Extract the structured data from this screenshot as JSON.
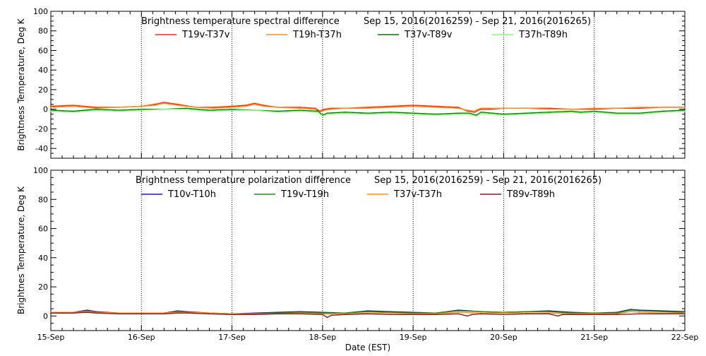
{
  "chart_data": [
    {
      "type": "line",
      "title": "Brightness temperature spectral difference",
      "date_range": "Sep 15, 2016(2016259) - Sep 21, 2016(2016265)",
      "ylabel": "Brightness Temperature, Deg K",
      "xlabel": "",
      "ylim": [
        -50,
        100
      ],
      "yticks": [
        "-40",
        "-20",
        "0",
        "20",
        "40",
        "60",
        "80",
        "100"
      ],
      "xlim": [
        0,
        7
      ],
      "xticks": [
        0,
        1,
        2,
        3,
        4,
        5,
        6,
        7
      ],
      "grid": "vertical-dotted",
      "legend_position": "top",
      "series": [
        {
          "name": "T19v-T37v",
          "color": "#ff2a00",
          "x": [
            0,
            0.25,
            0.5,
            0.75,
            1,
            1.15,
            1.25,
            1.4,
            1.6,
            1.8,
            2,
            2.15,
            2.25,
            2.35,
            2.5,
            2.75,
            2.92,
            2.97,
            3.02,
            3.1,
            3.25,
            3.5,
            3.75,
            4,
            4.25,
            4.5,
            4.6,
            4.68,
            4.72,
            4.75,
            4.85,
            5,
            5.25,
            5.5,
            5.75,
            6,
            6.25,
            6.5,
            6.75,
            7
          ],
          "y": [
            3,
            4,
            2,
            2,
            3,
            5,
            7,
            5,
            2,
            2,
            3,
            4,
            6,
            4,
            2,
            2,
            1,
            -2,
            0,
            1,
            1,
            2,
            3,
            4,
            3,
            2,
            -2,
            -3,
            -1,
            0,
            0,
            1,
            1,
            1,
            0,
            0,
            1,
            1,
            2,
            2
          ]
        },
        {
          "name": "T19h-T37h",
          "color": "#ff8c1a",
          "x": [
            0,
            0.25,
            0.5,
            0.75,
            1,
            1.15,
            1.25,
            1.4,
            1.6,
            1.8,
            2,
            2.15,
            2.25,
            2.35,
            2.5,
            2.75,
            2.92,
            2.97,
            3.02,
            3.1,
            3.25,
            3.5,
            3.75,
            4,
            4.25,
            4.5,
            4.6,
            4.68,
            4.72,
            4.75,
            4.85,
            5,
            5.25,
            5.5,
            5.75,
            6,
            6.25,
            6.5,
            6.75,
            7
          ],
          "y": [
            2,
            3,
            1,
            2,
            3,
            4,
            6,
            4,
            2,
            1,
            2,
            3,
            5,
            3,
            2,
            1,
            0,
            -3,
            -1,
            0,
            1,
            1,
            2,
            3,
            2,
            1,
            -1,
            -2,
            0,
            1,
            1,
            1,
            1,
            0,
            0,
            1,
            1,
            2,
            2,
            2
          ]
        },
        {
          "name": "T37v-T89v",
          "color": "#007a00",
          "x": [
            0,
            0.25,
            0.5,
            0.75,
            1,
            1.25,
            1.5,
            1.75,
            2,
            2.25,
            2.5,
            2.75,
            2.95,
            3,
            3.05,
            3.25,
            3.5,
            3.75,
            4,
            4.25,
            4.5,
            4.62,
            4.7,
            4.75,
            5,
            5.25,
            5.5,
            5.75,
            5.85,
            6,
            6.25,
            6.5,
            6.75,
            7
          ],
          "y": [
            -1,
            -2,
            0,
            -1,
            0,
            0,
            1,
            -1,
            0,
            -1,
            -2,
            -1,
            -2,
            -6,
            -4,
            -3,
            -4,
            -3,
            -4,
            -5,
            -4,
            -4,
            -6,
            -3,
            -5,
            -4,
            -3,
            -2,
            -3,
            -2,
            -4,
            -4,
            -2,
            -1
          ]
        },
        {
          "name": "T37h-T89h",
          "color": "#7dff66",
          "x": [
            0,
            0.25,
            0.5,
            0.75,
            1,
            1.25,
            1.5,
            1.75,
            2,
            2.25,
            2.5,
            2.75,
            2.95,
            3,
            3.05,
            3.25,
            3.5,
            3.75,
            4,
            4.25,
            4.5,
            4.62,
            4.7,
            4.75,
            5,
            5.25,
            5.5,
            5.75,
            5.85,
            6,
            6.25,
            6.5,
            6.75,
            7
          ],
          "y": [
            -2,
            -3,
            -1,
            -2,
            -1,
            0,
            0,
            -2,
            -1,
            -1,
            -3,
            -2,
            -3,
            -7,
            -5,
            -4,
            -5,
            -4,
            -5,
            -6,
            -5,
            -5,
            -7,
            -4,
            -6,
            -5,
            -4,
            -3,
            -4,
            -3,
            -5,
            -5,
            -3,
            -2
          ]
        }
      ]
    },
    {
      "type": "line",
      "title": "Brightness temperature polarization difference",
      "date_range": "Sep 15, 2016(2016259) - Sep 21, 2016(2016265)",
      "ylabel": "Brightnes Temperature, Deg K",
      "xlabel": "Date (EST)",
      "ylim": [
        -10,
        100
      ],
      "yticks": [
        "0",
        "20",
        "40",
        "60",
        "80",
        "100"
      ],
      "xlim": [
        0,
        7
      ],
      "xticks": [
        0,
        1,
        2,
        3,
        4,
        5,
        6,
        7
      ],
      "xticklabels": [
        "15-Sep",
        "16-Sep",
        "17-Sep",
        "18-Sep",
        "19-Sep",
        "20-Sep",
        "21-Sep",
        "22-Sep"
      ],
      "grid": "vertical-dotted",
      "legend_position": "top",
      "series": [
        {
          "name": "T10v-T10h",
          "color": "#1a1aa6",
          "x": [
            0,
            0.25,
            0.4,
            0.5,
            0.75,
            1,
            1.25,
            1.4,
            1.5,
            1.75,
            2,
            2.25,
            2.5,
            2.75,
            3,
            3.25,
            3.5,
            3.75,
            4,
            4.25,
            4.5,
            4.75,
            5,
            5.25,
            5.5,
            5.75,
            6,
            6.25,
            6.4,
            6.5,
            6.75,
            7
          ],
          "y": [
            2,
            2.5,
            4,
            3,
            2,
            2,
            2,
            3.5,
            3,
            2,
            1.5,
            2,
            2.5,
            3,
            2.5,
            2,
            3.5,
            3,
            2.5,
            2,
            4,
            3,
            2.5,
            3,
            3.5,
            2.5,
            2,
            2.5,
            4.5,
            4,
            3.5,
            3
          ]
        },
        {
          "name": "T19v-T19h",
          "color": "#1a9a1a",
          "x": [
            0,
            0.25,
            0.4,
            0.5,
            0.75,
            1,
            1.25,
            1.4,
            1.5,
            1.75,
            2,
            2.25,
            2.5,
            2.75,
            3,
            3.25,
            3.5,
            3.75,
            4,
            4.25,
            4.5,
            4.75,
            5,
            5.25,
            5.5,
            5.75,
            6,
            6.25,
            6.4,
            6.5,
            6.75,
            7
          ],
          "y": [
            2,
            2,
            3.5,
            2.5,
            2,
            2,
            2,
            3,
            2.5,
            2,
            1.5,
            1.5,
            2,
            2.5,
            2,
            2,
            3,
            2.5,
            2,
            2,
            3.5,
            3,
            2.5,
            3,
            3,
            2,
            2,
            2,
            4,
            3.5,
            3,
            2.5
          ]
        },
        {
          "name": "T37v-T37h",
          "color": "#ff8c1a",
          "x": [
            0,
            0.25,
            0.4,
            0.5,
            0.75,
            1,
            1.25,
            1.4,
            1.5,
            1.75,
            2,
            2.25,
            2.5,
            2.75,
            3,
            3.25,
            3.5,
            3.75,
            4,
            4.25,
            4.5,
            4.75,
            5,
            5.25,
            5.5,
            5.75,
            6,
            6.25,
            6.4,
            6.5,
            6.75,
            7
          ],
          "y": [
            2.5,
            2.5,
            3,
            2.5,
            2,
            2,
            2,
            2.5,
            2.5,
            2,
            1.5,
            1.5,
            1.5,
            2,
            1.5,
            1.5,
            2,
            2,
            1.5,
            1.5,
            2.5,
            2,
            2,
            2,
            2,
            1.5,
            1.5,
            1.5,
            3,
            2.5,
            2,
            2
          ]
        },
        {
          "name": "T89v-T89h",
          "color": "#8b1a1a",
          "x": [
            0,
            0.25,
            0.4,
            0.5,
            0.75,
            1,
            1.25,
            1.4,
            1.5,
            1.75,
            2,
            2.25,
            2.5,
            2.75,
            3,
            3.05,
            3.1,
            3.25,
            3.5,
            3.75,
            4,
            4.25,
            4.5,
            4.6,
            4.65,
            4.75,
            5,
            5.25,
            5.5,
            5.6,
            5.65,
            5.75,
            6,
            6.25,
            6.5,
            6.75,
            7
          ],
          "y": [
            2,
            2,
            2.5,
            2,
            1.5,
            1.5,
            1.5,
            2,
            2,
            1.5,
            1,
            1,
            1.5,
            1.5,
            1,
            -1,
            0.5,
            1,
            1.5,
            1,
            1,
            1,
            1.5,
            0,
            1,
            1.5,
            1,
            1.5,
            1.5,
            0,
            1,
            1,
            1,
            1,
            1.5,
            1.5,
            1.5
          ]
        }
      ]
    }
  ]
}
